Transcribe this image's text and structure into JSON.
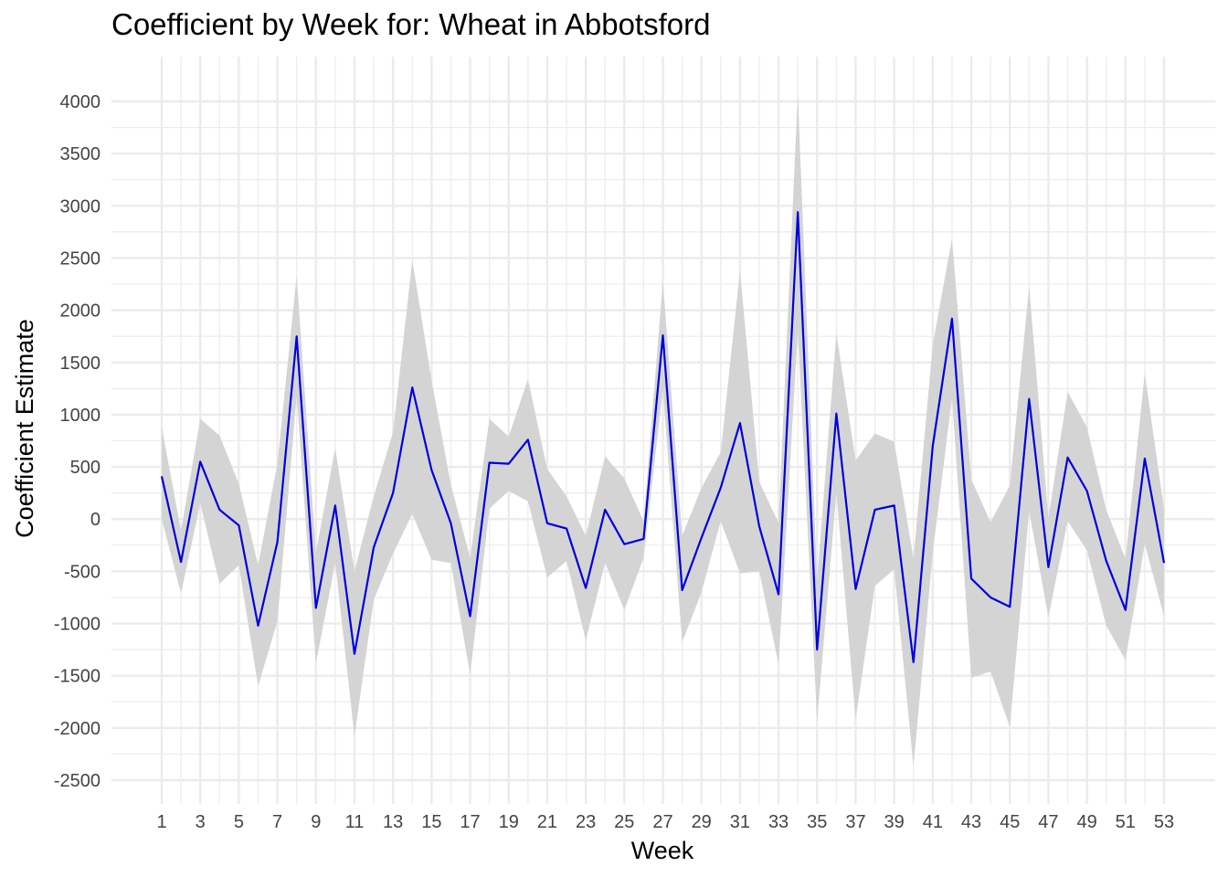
{
  "chart_data": {
    "type": "line",
    "title": "Coefficient by Week for: Wheat in Abbotsford",
    "xlabel": "Week",
    "ylabel": "Coefficient Estimate",
    "x": [
      1,
      2,
      3,
      4,
      5,
      6,
      7,
      8,
      9,
      10,
      11,
      12,
      13,
      14,
      15,
      16,
      17,
      18,
      19,
      20,
      21,
      22,
      23,
      24,
      25,
      26,
      27,
      28,
      29,
      30,
      31,
      32,
      33,
      34,
      35,
      36,
      37,
      38,
      39,
      40,
      41,
      42,
      43,
      44,
      45,
      46,
      47,
      48,
      49,
      50,
      51,
      52,
      53
    ],
    "xticks": [
      1,
      3,
      5,
      7,
      9,
      11,
      13,
      15,
      17,
      19,
      21,
      23,
      25,
      27,
      29,
      31,
      33,
      35,
      37,
      39,
      41,
      43,
      45,
      47,
      49,
      51,
      53
    ],
    "xlim": [
      1,
      53
    ],
    "ylim": [
      -2700,
      4200
    ],
    "yticks": [
      -2500,
      -2000,
      -1500,
      -1000,
      -500,
      0,
      500,
      1000,
      1500,
      2000,
      2500,
      3000,
      3500,
      4000
    ],
    "grid": true,
    "series": [
      {
        "values": [
          410,
          -410,
          550,
          90,
          -60,
          -1020,
          -220,
          1750,
          -850,
          130,
          -1290,
          -270,
          250,
          1260,
          470,
          -40,
          -930,
          540,
          530,
          760,
          -40,
          -90,
          -660,
          90,
          -240,
          -190,
          1760,
          -680,
          -180,
          300,
          920,
          -70,
          -720,
          2940,
          -1250,
          1010,
          -670,
          90,
          130,
          -1370,
          700,
          1920,
          -570,
          -750,
          -840,
          1150,
          -460,
          590,
          270,
          -400,
          -870,
          580,
          -420
        ],
        "lower": [
          0,
          -710,
          150,
          -620,
          -440,
          -1600,
          -980,
          1180,
          -1380,
          -420,
          -2080,
          -770,
          -330,
          50,
          -390,
          -420,
          -1490,
          100,
          270,
          170,
          -560,
          -400,
          -1160,
          -420,
          -870,
          -370,
          1240,
          -1180,
          -700,
          -20,
          -520,
          -500,
          -1390,
          1810,
          -1930,
          250,
          -1920,
          -640,
          -480,
          -2370,
          -320,
          1160,
          -1520,
          -1460,
          -1990,
          80,
          -940,
          -20,
          -300,
          -1020,
          -1350,
          -240,
          -930
        ],
        "upper": [
          880,
          -110,
          960,
          800,
          340,
          -440,
          530,
          2330,
          -320,
          680,
          -500,
          220,
          830,
          2480,
          1330,
          330,
          -370,
          960,
          790,
          1340,
          480,
          220,
          -160,
          600,
          390,
          -20,
          2280,
          -160,
          300,
          640,
          2380,
          360,
          -40,
          4080,
          -590,
          1780,
          560,
          820,
          740,
          -380,
          1670,
          2690,
          380,
          -30,
          320,
          2230,
          10,
          1220,
          880,
          90,
          -380,
          1400,
          90
        ]
      }
    ],
    "line_color": "#0000dd",
    "ribbon_color": "#d4d4d4",
    "grid_color": "#ebebeb"
  }
}
